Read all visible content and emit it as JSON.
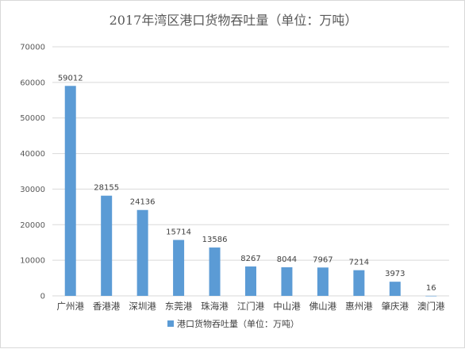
{
  "chart_data": {
    "type": "bar",
    "title": "2017年湾区港口货物吞吐量（单位：万吨）",
    "categories": [
      "广州港",
      "香港港",
      "深圳港",
      "东莞港",
      "珠海港",
      "江门港",
      "中山港",
      "佛山港",
      "惠州港",
      "肇庆港",
      "澳门港"
    ],
    "series": [
      {
        "name": "港口货物吞吐量（单位：万吨）",
        "values": [
          59012,
          28155,
          24136,
          15714,
          13586,
          8267,
          8044,
          7967,
          7214,
          3973,
          16
        ]
      }
    ],
    "data_labels": [
      "59012",
      "28155",
      "24136",
      "15714",
      "13586",
      "8267",
      "8044",
      "7967",
      "7214",
      "3973",
      "16"
    ],
    "ylim": [
      0,
      70000
    ],
    "yticks": [
      "0",
      "10000",
      "20000",
      "30000",
      "40000",
      "50000",
      "60000",
      "70000"
    ],
    "ytick_values": [
      0,
      10000,
      20000,
      30000,
      40000,
      50000,
      60000,
      70000
    ],
    "grid": true,
    "legend_position": "bottom",
    "bar_color": "#5b9bd5",
    "grid_color": "#d9d9d9"
  }
}
